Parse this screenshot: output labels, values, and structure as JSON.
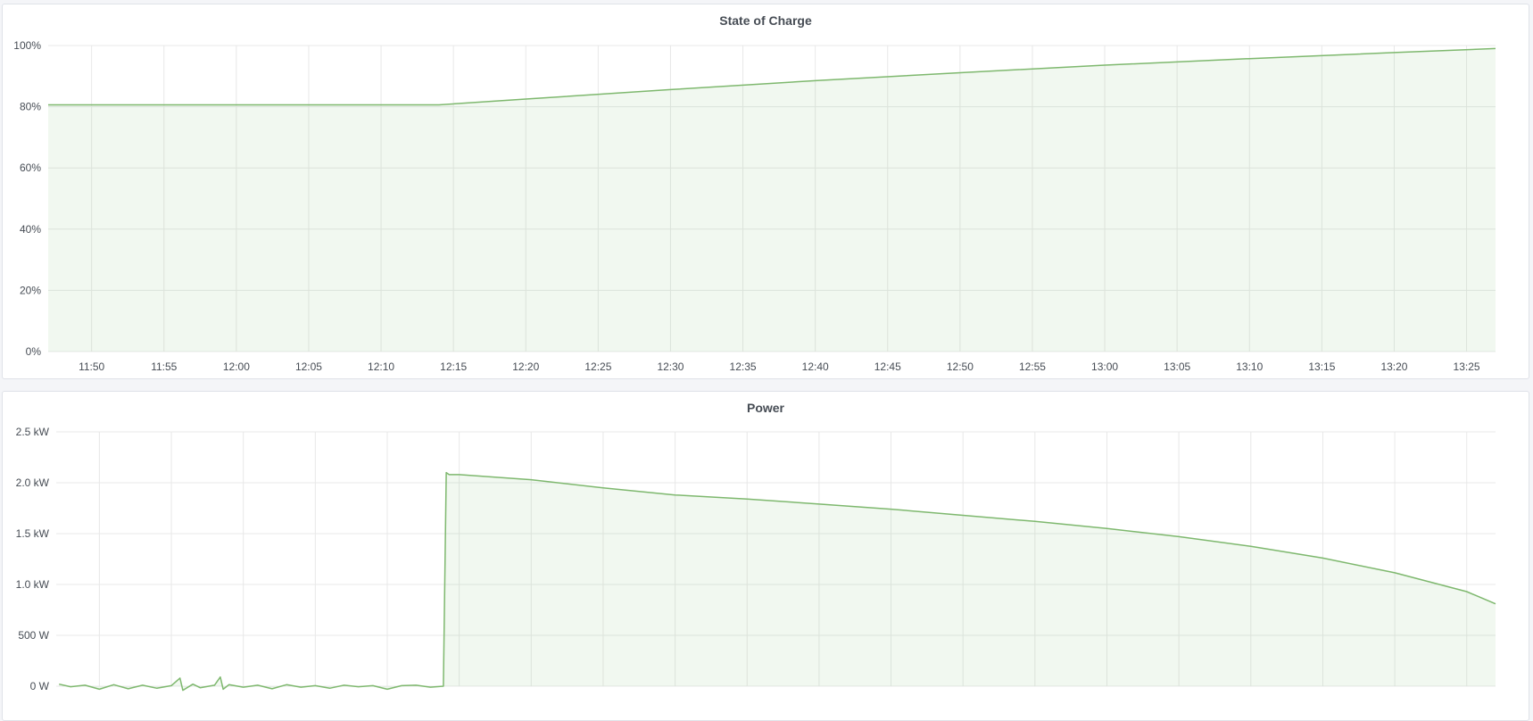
{
  "colors": {
    "series_line": "#7eb86e",
    "series_fill": "#73bf69",
    "grid": "#e8e8e8",
    "background": "#f4f5f8"
  },
  "chart_data": [
    {
      "type": "area",
      "title": "State of Charge",
      "x_range": [
        "11:47",
        "13:27"
      ],
      "x_ticks": [
        "11:50",
        "11:55",
        "12:00",
        "12:05",
        "12:10",
        "12:15",
        "12:20",
        "12:25",
        "12:30",
        "12:35",
        "12:40",
        "12:45",
        "12:50",
        "12:55",
        "13:00",
        "13:05",
        "13:10",
        "13:15",
        "13:20",
        "13:25"
      ],
      "ylim": [
        0,
        100
      ],
      "y_ticks": [
        {
          "value": 0,
          "label": "0%"
        },
        {
          "value": 20,
          "label": "20%"
        },
        {
          "value": 40,
          "label": "40%"
        },
        {
          "value": 60,
          "label": "60%"
        },
        {
          "value": 80,
          "label": "80%"
        },
        {
          "value": 100,
          "label": "100%"
        }
      ],
      "grid": true,
      "legend": "none",
      "series": [
        {
          "points": [
            [
              "11:47",
              80.6
            ],
            [
              "12:00",
              80.6
            ],
            [
              "12:14",
              80.6
            ],
            [
              "12:20",
              82.5
            ],
            [
              "12:30",
              85.6
            ],
            [
              "12:40",
              88.5
            ],
            [
              "12:50",
              91.1
            ],
            [
              "13:00",
              93.6
            ],
            [
              "13:10",
              95.7
            ],
            [
              "13:20",
              97.7
            ],
            [
              "13:27",
              99.0
            ]
          ]
        }
      ]
    },
    {
      "type": "area",
      "title": "Power",
      "x_range": [
        "11:47",
        "13:27"
      ],
      "ylim": [
        0,
        2500
      ],
      "y_ticks": [
        {
          "value": 0,
          "label": "0 W"
        },
        {
          "value": 500,
          "label": "500 W"
        },
        {
          "value": 1000,
          "label": "1.0 kW"
        },
        {
          "value": 1500,
          "label": "1.5 kW"
        },
        {
          "value": 2000,
          "label": "2.0 kW"
        },
        {
          "value": 2500,
          "label": "2.5 kW"
        }
      ],
      "grid": true,
      "legend": "none",
      "series": [
        {
          "points": [
            [
              "11:47.2",
              20
            ],
            [
              "11:48",
              -5
            ],
            [
              "11:49",
              10
            ],
            [
              "11:50",
              -30
            ],
            [
              "11:51",
              15
            ],
            [
              "11:52",
              -25
            ],
            [
              "11:53",
              10
            ],
            [
              "11:54",
              -20
            ],
            [
              "11:55",
              5
            ],
            [
              "11:55.6",
              80
            ],
            [
              "11:55.8",
              -40
            ],
            [
              "11:56.5",
              20
            ],
            [
              "11:57",
              -15
            ],
            [
              "11:58",
              10
            ],
            [
              "11:58.4",
              90
            ],
            [
              "11:58.6",
              -30
            ],
            [
              "11:59",
              15
            ],
            [
              "12:00",
              -10
            ],
            [
              "12:01",
              10
            ],
            [
              "12:02",
              -25
            ],
            [
              "12:03",
              15
            ],
            [
              "12:04",
              -10
            ],
            [
              "12:05",
              5
            ],
            [
              "12:06",
              -20
            ],
            [
              "12:07",
              10
            ],
            [
              "12:08",
              -5
            ],
            [
              "12:09",
              5
            ],
            [
              "12:10",
              -30
            ],
            [
              "12:11",
              5
            ],
            [
              "12:12",
              10
            ],
            [
              "12:13",
              -10
            ],
            [
              "12:13.9",
              0
            ],
            [
              "12:14.1",
              2100
            ],
            [
              "12:14.3",
              2080
            ],
            [
              "12:15",
              2080
            ],
            [
              "12:20",
              2030
            ],
            [
              "12:25",
              1950
            ],
            [
              "12:30",
              1880
            ],
            [
              "12:35",
              1840
            ],
            [
              "12:40",
              1790
            ],
            [
              "12:45",
              1740
            ],
            [
              "12:50",
              1680
            ],
            [
              "12:55",
              1620
            ],
            [
              "13:00",
              1550
            ],
            [
              "13:05",
              1470
            ],
            [
              "13:10",
              1375
            ],
            [
              "13:15",
              1260
            ],
            [
              "13:20",
              1115
            ],
            [
              "13:25",
              930
            ],
            [
              "13:27",
              810
            ]
          ]
        }
      ]
    }
  ]
}
